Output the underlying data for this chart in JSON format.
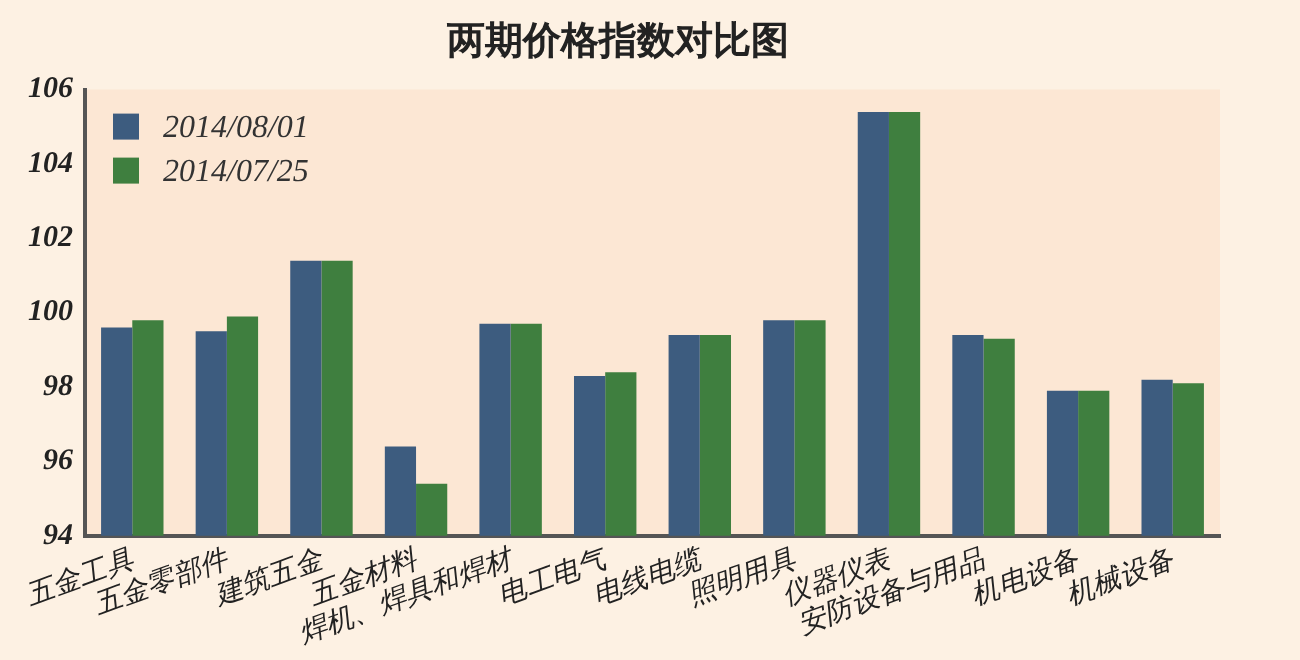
{
  "chart_data": {
    "type": "bar",
    "title": "两期价格指数对比图",
    "categories": [
      "五金工具",
      "五金零部件",
      "建筑五金",
      "五金材料",
      "焊机、焊具和焊材",
      "电工电气",
      "电线电缆",
      "照明用具",
      "仪器仪表",
      "安防设备与用品",
      "机电设备",
      "机械设备"
    ],
    "series": [
      {
        "name": "2014/08/01",
        "color": "#3d5c7f",
        "values": [
          99.6,
          99.5,
          101.4,
          96.4,
          99.7,
          98.3,
          99.4,
          99.8,
          105.4,
          99.4,
          97.9,
          98.2
        ]
      },
      {
        "name": "2014/07/25",
        "color": "#3f7f3f",
        "values": [
          99.8,
          99.9,
          101.4,
          95.4,
          99.7,
          98.4,
          99.4,
          99.8,
          105.4,
          99.3,
          97.9,
          98.1
        ]
      }
    ],
    "ylim": [
      94,
      106
    ],
    "yticks": [
      94,
      96,
      98,
      100,
      102,
      104,
      106
    ],
    "grid": false,
    "legend": "top left"
  }
}
